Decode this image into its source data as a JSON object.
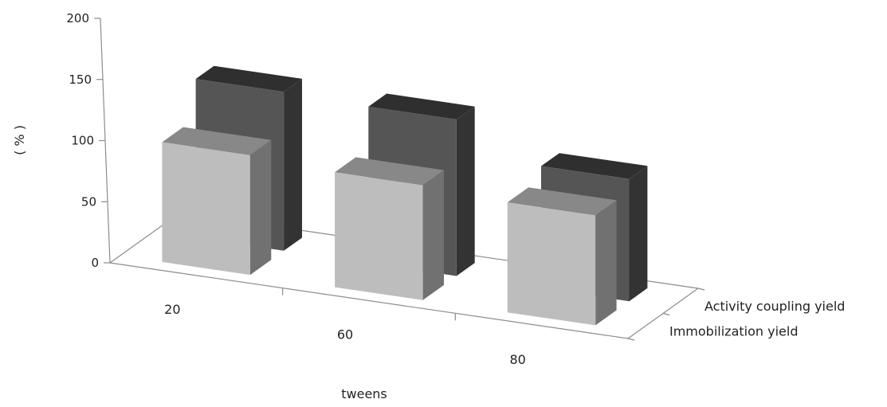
{
  "chart_data": {
    "type": "bar",
    "title": "",
    "xlabel": "tweens",
    "ylabel": "( % )",
    "categories": [
      "20",
      "60",
      "80"
    ],
    "series": [
      {
        "name": "Immobilization  yield",
        "values": [
          98,
          94,
          90
        ],
        "color": "#bdbdbd"
      },
      {
        "name": "Activity coupling yield",
        "values": [
          130,
          128,
          100
        ],
        "color": "#555555"
      }
    ],
    "y_ticks": [
      "0",
      "50",
      "100",
      "150",
      "200"
    ],
    "ylim": [
      0,
      200
    ],
    "grid": false,
    "legend": "none"
  }
}
